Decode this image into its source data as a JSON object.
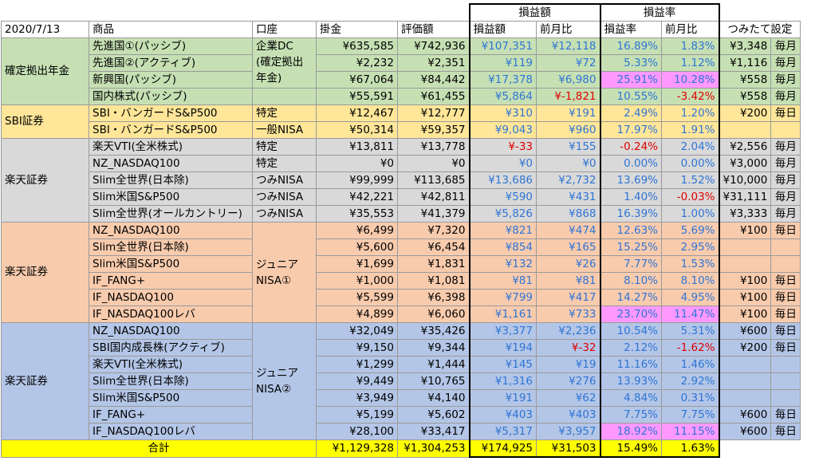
{
  "group_headers": {
    "profit": "損益額",
    "rate": "損益率"
  },
  "headers": [
    "2020/7/13",
    "商品",
    "口座",
    "掛金",
    "評価額",
    "損益額",
    "前月比",
    "損益率",
    "前月比",
    "つみたて設定"
  ],
  "colors": {
    "green": "#c6e0b4",
    "yellow": "#ffe699",
    "gray": "#d9d9d9",
    "orange": "#f8cbad",
    "blue": "#b4c6e7",
    "total": "#ffff00",
    "pink": "#ff99ff",
    "blue_text": "#2e75d6",
    "red_text": "#e00000"
  },
  "groups": [
    {
      "name": "確定拠出年金",
      "color": "green",
      "rows": [
        {
          "product": "先進国①(パッシブ)",
          "account": "企業DC\n(確定拠出\n年金)",
          "kakekin": "¥635,585",
          "hyoka": "¥742,936",
          "soneki": "¥107,351",
          "zengetsu": "¥12,118",
          "rate": "16.89%",
          "rate_zengetsu": "1.83%",
          "amount": "¥3,348",
          "freq": "毎月"
        },
        {
          "product": "先進国②(アクティブ)",
          "kakekin": "¥2,232",
          "hyoka": "¥2,351",
          "soneki": "¥119",
          "zengetsu": "¥72",
          "rate": "5.33%",
          "rate_zengetsu": "1.12%",
          "amount": "¥1,116",
          "freq": "毎月"
        },
        {
          "product": "新興国(パッシブ)",
          "kakekin": "¥67,064",
          "hyoka": "¥84,442",
          "soneki": "¥17,378",
          "zengetsu": "¥6,980",
          "rate": "25.91%",
          "rate_zengetsu": "10.28%",
          "amount": "¥558",
          "freq": "毎月",
          "rate_hl": true,
          "rz_hl": true
        },
        {
          "product": "国内株式(パッシブ)",
          "kakekin": "¥55,591",
          "hyoka": "¥61,455",
          "soneki": "¥5,864",
          "zengetsu": "¥-1,821",
          "zengetsu_neg": true,
          "rate": "10.55%",
          "rate_zengetsu": "-3.42%",
          "rz_neg": true,
          "amount": "¥558",
          "freq": "毎月"
        }
      ]
    },
    {
      "name": "SBI証券",
      "color": "yellow",
      "rows": [
        {
          "product": "SBI・バンガードS&P500",
          "account": "特定",
          "kakekin": "¥12,467",
          "hyoka": "¥12,777",
          "soneki": "¥310",
          "zengetsu": "¥191",
          "rate": "2.49%",
          "rate_zengetsu": "1.20%",
          "amount": "¥200",
          "freq": "毎日"
        },
        {
          "product": "SBI・バンガードS&P500",
          "account": "一般NISA",
          "kakekin": "¥50,314",
          "hyoka": "¥59,357",
          "soneki": "¥9,043",
          "zengetsu": "¥960",
          "rate": "17.97%",
          "rate_zengetsu": "1.91%",
          "amount": "",
          "freq": ""
        }
      ]
    },
    {
      "name": "楽天証券",
      "color": "gray",
      "rows": [
        {
          "product": "楽天VTI(全米株式)",
          "account": "特定",
          "kakekin": "¥13,811",
          "hyoka": "¥13,778",
          "soneki": "¥-33",
          "soneki_neg": true,
          "zengetsu": "¥155",
          "rate": "-0.24%",
          "rate_neg": true,
          "rate_zengetsu": "2.04%",
          "amount": "¥2,556",
          "freq": "毎月"
        },
        {
          "product": "NZ_NASDAQ100",
          "account": "特定",
          "kakekin": "¥0",
          "hyoka": "¥0",
          "soneki": "¥0",
          "zengetsu": "¥0",
          "rate": "0.00%",
          "rate_zengetsu": "0.00%",
          "amount": "¥3,000",
          "freq": "毎月"
        },
        {
          "product": "Slim全世界(日本除)",
          "account": "つみNISA",
          "kakekin": "¥99,999",
          "hyoka": "¥113,685",
          "soneki": "¥13,686",
          "zengetsu": "¥2,732",
          "rate": "13.69%",
          "rate_zengetsu": "1.52%",
          "amount": "¥10,000",
          "freq": "毎月"
        },
        {
          "product": "Slim米国S&P500",
          "account": "つみNISA",
          "kakekin": "¥42,221",
          "hyoka": "¥42,811",
          "soneki": "¥590",
          "zengetsu": "¥431",
          "rate": "1.40%",
          "rate_zengetsu": "-0.03%",
          "rz_neg": true,
          "amount": "¥31,111",
          "freq": "毎月"
        },
        {
          "product": "Slim全世界(オールカントリー)",
          "account": "つみNISA",
          "kakekin": "¥35,553",
          "hyoka": "¥41,379",
          "soneki": "¥5,826",
          "zengetsu": "¥868",
          "rate": "16.39%",
          "rate_zengetsu": "1.00%",
          "amount": "¥3,333",
          "freq": "毎月"
        }
      ]
    },
    {
      "name": "楽天証券",
      "color": "orange",
      "account": "ジュニア\nNISA①",
      "rows": [
        {
          "product": "NZ_NASDAQ100",
          "kakekin": "¥6,499",
          "hyoka": "¥7,320",
          "soneki": "¥821",
          "zengetsu": "¥474",
          "rate": "12.63%",
          "rate_zengetsu": "5.69%",
          "amount": "¥100",
          "freq": "毎日"
        },
        {
          "product": "Slim全世界(日本除)",
          "kakekin": "¥5,600",
          "hyoka": "¥6,454",
          "soneki": "¥854",
          "zengetsu": "¥165",
          "rate": "15.25%",
          "rate_zengetsu": "2.95%",
          "amount": "",
          "freq": ""
        },
        {
          "product": "Slim米国S&P500",
          "kakekin": "¥1,699",
          "hyoka": "¥1,831",
          "soneki": "¥132",
          "zengetsu": "¥26",
          "rate": "7.77%",
          "rate_zengetsu": "1.53%",
          "amount": "",
          "freq": ""
        },
        {
          "product": "IF_FANG+",
          "kakekin": "¥1,000",
          "hyoka": "¥1,081",
          "soneki": "¥81",
          "zengetsu": "¥81",
          "rate": "8.10%",
          "rate_zengetsu": "8.10%",
          "amount": "¥100",
          "freq": "毎日"
        },
        {
          "product": "IF_NASDAQ100",
          "kakekin": "¥5,599",
          "hyoka": "¥6,398",
          "soneki": "¥799",
          "zengetsu": "¥417",
          "rate": "14.27%",
          "rate_zengetsu": "4.95%",
          "amount": "¥100",
          "freq": "毎日"
        },
        {
          "product": "IF_NASDAQ100レバ",
          "kakekin": "¥4,899",
          "hyoka": "¥6,060",
          "soneki": "¥1,161",
          "zengetsu": "¥733",
          "rate": "23.70%",
          "rate_zengetsu": "11.47%",
          "amount": "¥100",
          "freq": "毎日",
          "rate_hl": true,
          "rz_hl": true
        }
      ]
    },
    {
      "name": "楽天証券",
      "color": "blue",
      "account": "ジュニア\nNISA②",
      "rows": [
        {
          "product": "NZ_NASDAQ100",
          "kakekin": "¥32,049",
          "hyoka": "¥35,426",
          "soneki": "¥3,377",
          "zengetsu": "¥2,236",
          "rate": "10.54%",
          "rate_zengetsu": "5.31%",
          "amount": "¥600",
          "freq": "毎日"
        },
        {
          "product": "SBI国内成長株(アクティブ)",
          "kakekin": "¥9,150",
          "hyoka": "¥9,344",
          "soneki": "¥194",
          "zengetsu": "¥-32",
          "zengetsu_neg": true,
          "rate": "2.12%",
          "rate_zengetsu": "-1.62%",
          "rz_neg": true,
          "amount": "¥200",
          "freq": "毎日"
        },
        {
          "product": "楽天VTI(全米株式)",
          "kakekin": "¥1,299",
          "hyoka": "¥1,444",
          "soneki": "¥145",
          "zengetsu": "¥19",
          "rate": "11.16%",
          "rate_zengetsu": "1.46%",
          "amount": "",
          "freq": ""
        },
        {
          "product": "Slim全世界(日本除)",
          "kakekin": "¥9,449",
          "hyoka": "¥10,765",
          "soneki": "¥1,316",
          "zengetsu": "¥276",
          "rate": "13.93%",
          "rate_zengetsu": "2.92%",
          "amount": "",
          "freq": ""
        },
        {
          "product": "Slim米国S&P500",
          "kakekin": "¥3,949",
          "hyoka": "¥4,140",
          "soneki": "¥191",
          "zengetsu": "¥62",
          "rate": "4.84%",
          "rate_zengetsu": "0.31%",
          "amount": "",
          "freq": ""
        },
        {
          "product": "IF_FANG+",
          "kakekin": "¥5,199",
          "hyoka": "¥5,602",
          "soneki": "¥403",
          "zengetsu": "¥403",
          "rate": "7.75%",
          "rate_zengetsu": "7.75%",
          "amount": "¥600",
          "freq": "毎日"
        },
        {
          "product": "IF_NASDAQ100レバ",
          "kakekin": "¥28,100",
          "hyoka": "¥33,417",
          "soneki": "¥5,317",
          "zengetsu": "¥3,957",
          "rate": "18.92%",
          "rate_zengetsu": "11.15%",
          "amount": "¥600",
          "freq": "毎日",
          "rate_hl": true,
          "rz_hl": true
        }
      ]
    }
  ],
  "total": {
    "label": "合計",
    "kakekin": "¥1,129,328",
    "hyoka": "¥1,304,253",
    "soneki": "¥174,925",
    "zengetsu": "¥31,503",
    "rate": "15.49%",
    "rate_zengetsu": "1.63%"
  }
}
